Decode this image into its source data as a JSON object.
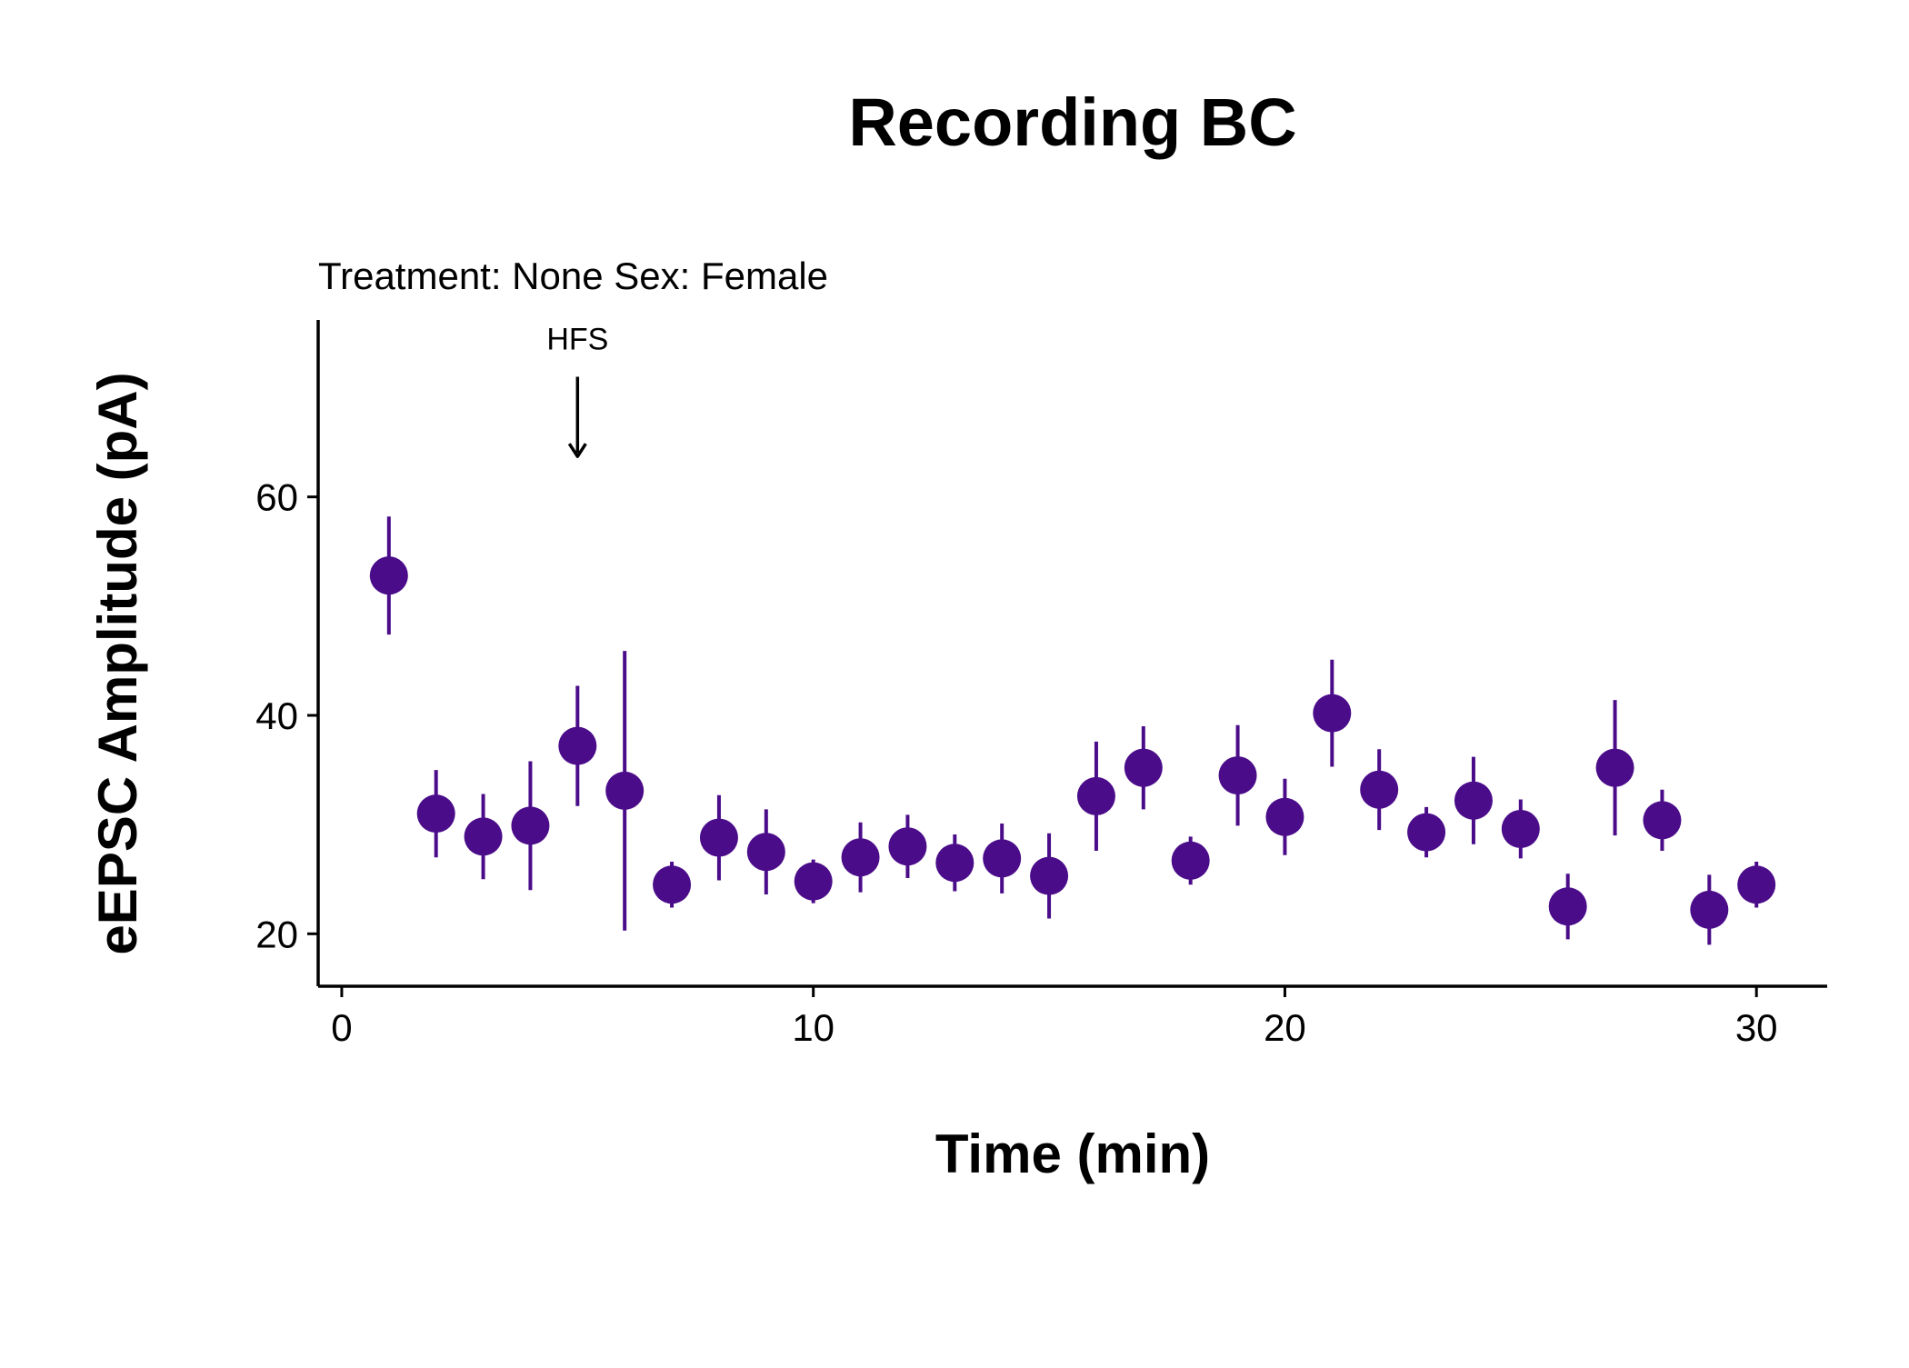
{
  "chart_data": {
    "type": "scatter",
    "title": "Recording BC",
    "subtitle": "Treatment: None  Sex: Female",
    "xlabel": "Time (min)",
    "ylabel": "eEPSC Amplitude (pA)",
    "xlim": [
      -0.5,
      31.5
    ],
    "ylim": [
      15.2,
      76.2
    ],
    "x_ticks": [
      0,
      10,
      20,
      30
    ],
    "y_ticks": [
      20,
      40,
      60
    ],
    "grid": false,
    "legend": "none",
    "point_color": "#4B0C8A",
    "annotation": {
      "text": "HFS",
      "x": 5,
      "arrow_from_y": 71.0,
      "arrow_to_y": 63.7
    },
    "series": [
      {
        "x": [
          1,
          2,
          3,
          4,
          5,
          6,
          7,
          8,
          9,
          10,
          11,
          12,
          13,
          14,
          15,
          16,
          17,
          18,
          19,
          20,
          21,
          22,
          23,
          24,
          25,
          26,
          27,
          28,
          29,
          30
        ],
        "y": [
          52.8,
          31.0,
          28.9,
          29.9,
          37.2,
          33.1,
          24.5,
          28.8,
          27.5,
          24.8,
          27.0,
          28.0,
          26.5,
          26.9,
          25.3,
          32.6,
          35.2,
          26.7,
          34.5,
          30.7,
          40.2,
          33.2,
          29.3,
          32.2,
          29.6,
          22.5,
          35.2,
          30.4,
          22.2,
          24.5
        ],
        "ymin": [
          47.4,
          27.0,
          25.0,
          24.0,
          31.7,
          20.3,
          22.4,
          24.9,
          23.6,
          22.8,
          23.8,
          25.1,
          23.9,
          23.7,
          21.4,
          27.6,
          31.4,
          24.5,
          29.9,
          27.2,
          35.3,
          29.5,
          27.0,
          28.2,
          26.9,
          19.5,
          29.0,
          27.6,
          19.0,
          22.4
        ],
        "ymax": [
          58.2,
          35.0,
          32.8,
          35.8,
          42.7,
          45.9,
          26.6,
          32.7,
          31.4,
          26.8,
          30.2,
          30.9,
          29.1,
          30.1,
          29.2,
          37.6,
          39.0,
          28.9,
          39.1,
          34.2,
          45.1,
          36.9,
          31.6,
          36.2,
          32.3,
          25.5,
          41.4,
          33.2,
          25.4,
          26.6
        ]
      }
    ]
  }
}
